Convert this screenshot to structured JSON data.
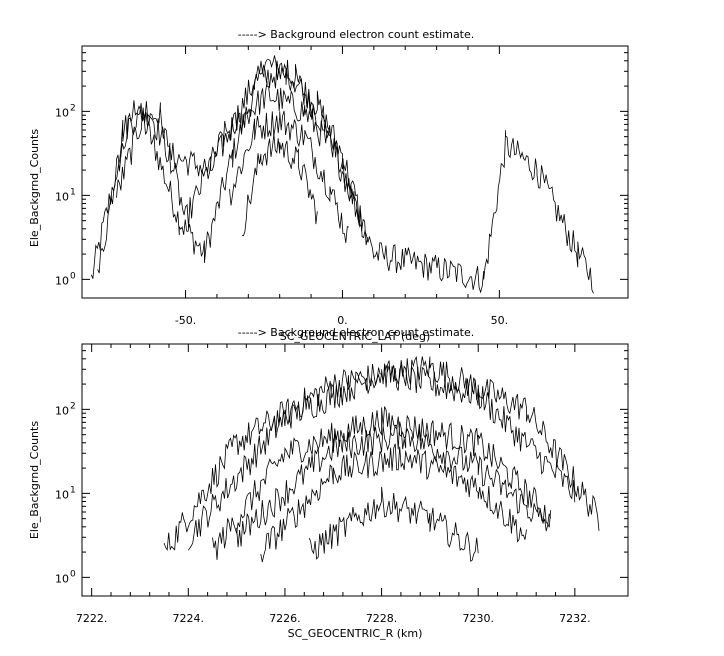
{
  "chart_data": [
    {
      "type": "line",
      "title": "-----> Background electron count estimate.",
      "xlabel": "SC_GEOCENTRIC_LAT (deg)",
      "ylabel": "Ele_Backgrnd_Counts",
      "xlim": [
        -83,
        91
      ],
      "ylim": [
        0.6,
        600
      ],
      "yscale": "log",
      "grid": false,
      "x_ticks": [
        -50,
        0,
        50
      ],
      "x_tick_labels": [
        "-50.",
        "0.",
        "50."
      ],
      "y_ticks": [
        1,
        10,
        100
      ],
      "y_tick_labels": [
        "10",
        "10",
        "10"
      ],
      "y_tick_exponents": [
        "0",
        "1",
        "2"
      ],
      "series": [
        {
          "values": [
            [
              -80,
              1
            ],
            [
              -72,
              20
            ],
            [
              -66,
              120
            ],
            [
              -60,
              40
            ],
            [
              -52,
              5
            ],
            [
              -44,
              2
            ],
            [
              -35,
              30
            ],
            [
              -25,
              380
            ],
            [
              -15,
              250
            ],
            [
              -5,
              60
            ],
            [
              3,
              10
            ],
            [
              10,
              2
            ],
            [
              45,
              1
            ],
            [
              52,
              40
            ],
            [
              62,
              20
            ],
            [
              75,
              2
            ],
            [
              80,
              1
            ]
          ]
        },
        {
          "values": [
            [
              -78,
              1
            ],
            [
              -70,
              60
            ],
            [
              -62,
              110
            ],
            [
              -55,
              30
            ],
            [
              -42,
              20
            ],
            [
              -28,
              230
            ],
            [
              -18,
              300
            ],
            [
              -8,
              120
            ],
            [
              0,
              30
            ],
            [
              8,
              3
            ]
          ]
        },
        {
          "values": [
            [
              -72,
              10
            ],
            [
              -64,
              80
            ],
            [
              -58,
              90
            ],
            [
              -50,
              5
            ],
            [
              -38,
              50
            ],
            [
              -24,
              160
            ],
            [
              -12,
              100
            ],
            [
              -2,
              30
            ],
            [
              6,
              5
            ]
          ]
        },
        {
          "values": [
            [
              -36,
              10
            ],
            [
              -28,
              60
            ],
            [
              -20,
              80
            ],
            [
              -12,
              50
            ],
            [
              -4,
              12
            ],
            [
              2,
              3
            ]
          ]
        },
        {
          "values": [
            [
              -32,
              4
            ],
            [
              -26,
              30
            ],
            [
              -20,
              40
            ],
            [
              -14,
              25
            ],
            [
              -8,
              6
            ]
          ]
        }
      ]
    },
    {
      "type": "line",
      "title": "-----> Background electron count estimate.",
      "xlabel": "SC_GEOCENTRIC_R (km)",
      "ylabel": "Ele_Backgrnd_Counts",
      "xlim": [
        7221.8,
        7233.1
      ],
      "ylim": [
        0.6,
        600
      ],
      "yscale": "log",
      "grid": false,
      "x_ticks": [
        7222,
        7224,
        7226,
        7228,
        7230,
        7232
      ],
      "x_tick_labels": [
        "7222.",
        "7224.",
        "7226.",
        "7228.",
        "7230.",
        "7232."
      ],
      "y_ticks": [
        1,
        10,
        100
      ],
      "y_tick_labels": [
        "10",
        "10",
        "10"
      ],
      "y_tick_exponents": [
        "0",
        "1",
        "2"
      ],
      "series": [
        {
          "values": [
            [
              7223.5,
              2
            ],
            [
              7225,
              40
            ],
            [
              7227,
              200
            ],
            [
              7229,
              320
            ],
            [
              7231,
              100
            ],
            [
              7232.5,
              5
            ]
          ]
        },
        {
          "values": [
            [
              7224,
              3
            ],
            [
              7226,
              80
            ],
            [
              7228,
              270
            ],
            [
              7230,
              150
            ],
            [
              7232,
              10
            ]
          ]
        },
        {
          "values": [
            [
              7224.5,
              2
            ],
            [
              7226,
              30
            ],
            [
              7228,
              75
            ],
            [
              7230,
              40
            ],
            [
              7231.5,
              5
            ]
          ]
        },
        {
          "values": [
            [
              7225,
              3
            ],
            [
              7227,
              35
            ],
            [
              7228.5,
              50
            ],
            [
              7230,
              20
            ],
            [
              7231.5,
              4
            ]
          ]
        },
        {
          "values": [
            [
              7225.5,
              2
            ],
            [
              7227,
              18
            ],
            [
              7228.5,
              28
            ],
            [
              7230,
              12
            ],
            [
              7231,
              3
            ]
          ]
        },
        {
          "values": [
            [
              7226.5,
              2
            ],
            [
              7228,
              8
            ],
            [
              7229,
              5
            ],
            [
              7230,
              2
            ]
          ]
        }
      ]
    }
  ]
}
